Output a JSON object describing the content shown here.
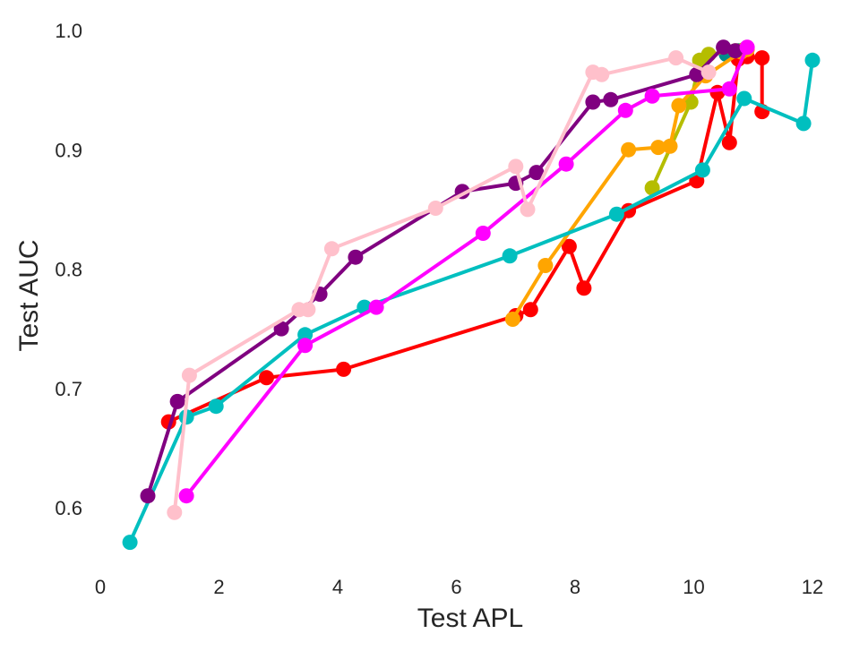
{
  "chart_data": {
    "type": "line",
    "title": "",
    "xlabel": "Test APL",
    "ylabel": "Test AUC",
    "xlim": [
      0,
      12.3
    ],
    "ylim": [
      0.55,
      1.0
    ],
    "xticks": [
      0,
      2,
      4,
      6,
      8,
      10,
      12
    ],
    "xtick_labels": [
      "0",
      "2",
      "4",
      "6",
      "8",
      "10",
      "12"
    ],
    "yticks": [
      0.6,
      0.7,
      0.8,
      0.9,
      1.0
    ],
    "ytick_labels": [
      "0.6",
      "0.7",
      "0.8",
      "0.9",
      "1.0"
    ],
    "grid": false,
    "legend": "none",
    "series": [
      {
        "color": "#ff0000",
        "points": [
          [
            1.15,
            0.672
          ],
          [
            2.8,
            0.709
          ],
          [
            4.1,
            0.716
          ],
          [
            7.0,
            0.761
          ],
          [
            7.25,
            0.766
          ],
          [
            7.9,
            0.819
          ],
          [
            8.15,
            0.784
          ],
          [
            8.9,
            0.849
          ],
          [
            10.05,
            0.874
          ],
          [
            10.4,
            0.948
          ],
          [
            10.6,
            0.906
          ],
          [
            10.75,
            0.976
          ],
          [
            10.9,
            0.978
          ],
          [
            11.15,
            0.977
          ],
          [
            11.15,
            0.932
          ]
        ]
      },
      {
        "color": "#008b8b",
        "points": [
          [
            10.55,
            0.98
          ],
          [
            10.75,
            0.983
          ],
          [
            10.85,
            0.984
          ]
        ]
      },
      {
        "color": "#b5bd00",
        "points": [
          [
            9.3,
            0.868
          ],
          [
            9.95,
            0.94
          ],
          [
            10.1,
            0.975
          ],
          [
            10.25,
            0.98
          ],
          [
            10.7,
            0.983
          ],
          [
            10.85,
            0.984
          ]
        ]
      },
      {
        "color": "#ffa500",
        "points": [
          [
            6.95,
            0.758
          ],
          [
            7.5,
            0.803
          ],
          [
            8.9,
            0.9
          ],
          [
            9.4,
            0.902
          ],
          [
            9.6,
            0.903
          ],
          [
            9.75,
            0.937
          ],
          [
            10.2,
            0.962
          ],
          [
            10.8,
            0.982
          ],
          [
            10.9,
            0.984
          ]
        ]
      },
      {
        "color": "#00bfbf",
        "points": [
          [
            0.5,
            0.571
          ],
          [
            1.45,
            0.676
          ],
          [
            1.95,
            0.685
          ],
          [
            3.45,
            0.745
          ],
          [
            4.45,
            0.768
          ],
          [
            6.9,
            0.811
          ],
          [
            8.7,
            0.846
          ],
          [
            10.15,
            0.883
          ],
          [
            10.85,
            0.943
          ],
          [
            11.85,
            0.922
          ],
          [
            12.0,
            0.975
          ]
        ]
      },
      {
        "color": "#800080",
        "points": [
          [
            0.8,
            0.61
          ],
          [
            1.3,
            0.689
          ],
          [
            3.05,
            0.75
          ],
          [
            3.7,
            0.779
          ],
          [
            4.3,
            0.81
          ],
          [
            6.1,
            0.865
          ],
          [
            7.0,
            0.872
          ],
          [
            7.35,
            0.881
          ],
          [
            8.3,
            0.94
          ],
          [
            8.6,
            0.942
          ],
          [
            10.05,
            0.963
          ],
          [
            10.5,
            0.986
          ],
          [
            10.7,
            0.983
          ]
        ]
      },
      {
        "color": "#ff00ff",
        "points": [
          [
            1.45,
            0.61
          ],
          [
            3.45,
            0.736
          ],
          [
            4.65,
            0.768
          ],
          [
            6.45,
            0.83
          ],
          [
            7.85,
            0.888
          ],
          [
            8.85,
            0.933
          ],
          [
            9.3,
            0.945
          ],
          [
            10.6,
            0.951
          ],
          [
            10.9,
            0.986
          ]
        ]
      },
      {
        "color": "#ffc0cb",
        "points": [
          [
            1.25,
            0.596
          ],
          [
            1.5,
            0.711
          ],
          [
            3.35,
            0.766
          ],
          [
            3.5,
            0.766
          ],
          [
            3.9,
            0.817
          ],
          [
            5.65,
            0.851
          ],
          [
            7.0,
            0.886
          ],
          [
            7.2,
            0.85
          ],
          [
            8.3,
            0.965
          ],
          [
            8.45,
            0.963
          ],
          [
            9.7,
            0.977
          ],
          [
            10.25,
            0.965
          ]
        ]
      }
    ]
  }
}
